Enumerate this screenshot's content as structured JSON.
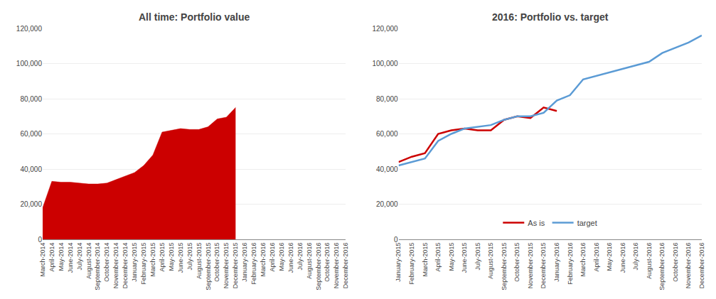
{
  "chart_data": [
    {
      "type": "area",
      "title": "All time: Portfolio value",
      "categories": [
        "March-2014",
        "April-2014",
        "May-2014",
        "June-2014",
        "July-2014",
        "August-2014",
        "September-2014",
        "October-2014",
        "November-2014",
        "December-2014",
        "January-2015",
        "February-2015",
        "March-2015",
        "April-2015",
        "May-2015",
        "June-2015",
        "July-2015",
        "August-2015",
        "September-2015",
        "October-2015",
        "November-2015",
        "December-2015",
        "January-2016",
        "February-2016",
        "March-2016",
        "April-2016",
        "May-2016",
        "June-2016",
        "July-2016",
        "August-2016",
        "September-2016",
        "October-2016",
        "November-2016",
        "December-2016"
      ],
      "values": [
        18000,
        33000,
        32500,
        32500,
        32000,
        31500,
        31500,
        32000,
        34000,
        36000,
        38000,
        42000,
        48000,
        61000,
        62000,
        63000,
        62500,
        62500,
        64000,
        68500,
        69500,
        75000,
        null,
        null,
        null,
        null,
        null,
        null,
        null,
        null,
        null,
        null,
        null,
        null
      ],
      "color": "#CC0000",
      "ylim": [
        0,
        120000
      ],
      "yticks": [
        0,
        {
          "value": 20000,
          "label": "20,000"
        },
        {
          "value": 40000,
          "label": "40,000"
        },
        {
          "value": 60000,
          "label": "60,000"
        },
        {
          "value": 80000,
          "label": "80,000"
        },
        {
          "value": 100000,
          "label": "100,000"
        },
        {
          "value": 120000,
          "label": "120,000"
        }
      ],
      "grid": true
    },
    {
      "type": "line",
      "title": "2016: Portfolio vs. target",
      "categories": [
        "January-2015",
        "February-2015",
        "March-2015",
        "April-2015",
        "May-2015",
        "June-2015",
        "July-2015",
        "August-2015",
        "September-2015",
        "October-2015",
        "November-2015",
        "December-2015",
        "January-2016",
        "February-2016",
        "March-2016",
        "April-2016",
        "May-2016",
        "June-2016",
        "July-2016",
        "August-2016",
        "September-2016",
        "October-2016",
        "November-2016",
        "December-2016"
      ],
      "series": [
        {
          "name": "As is",
          "color": "#CC0000",
          "values": [
            44000,
            47000,
            49000,
            60000,
            62000,
            63000,
            62000,
            62000,
            68000,
            70000,
            69000,
            75000,
            73000,
            null,
            null,
            null,
            null,
            null,
            null,
            null,
            null,
            null,
            null,
            null
          ]
        },
        {
          "name": "target",
          "color": "#5B9BD5",
          "values": [
            42000,
            44000,
            46000,
            56000,
            60000,
            63000,
            64000,
            65000,
            68000,
            70000,
            70000,
            72000,
            79000,
            82000,
            91000,
            93000,
            95000,
            97000,
            99000,
            101000,
            106000,
            109000,
            112000,
            116000
          ]
        }
      ],
      "ylim": [
        0,
        120000
      ],
      "yticks": [
        0,
        {
          "value": 20000,
          "label": "20,000"
        },
        {
          "value": 40000,
          "label": "40,000"
        },
        {
          "value": 60000,
          "label": "60,000"
        },
        {
          "value": 80000,
          "label": "80,000"
        },
        {
          "value": 100000,
          "label": "100,000"
        },
        {
          "value": 120000,
          "label": "120,000"
        }
      ],
      "grid": true,
      "legend": "lower center"
    }
  ]
}
